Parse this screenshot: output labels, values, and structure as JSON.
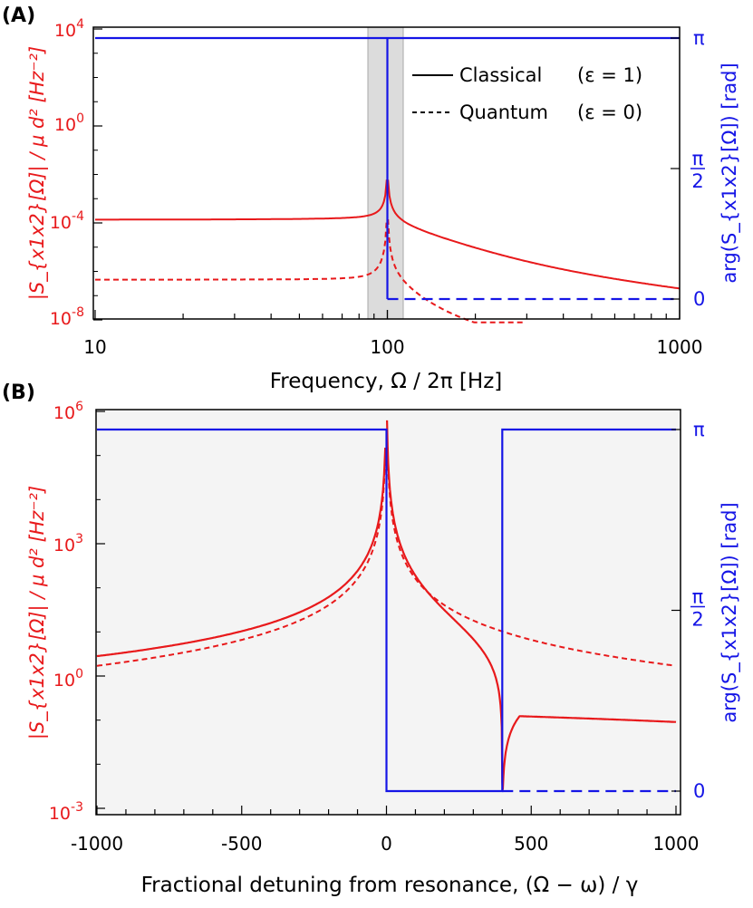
{
  "chart_data": [
    {
      "panel": "(A)",
      "type": "line",
      "xscale": "log",
      "xlim": [
        10,
        1000
      ],
      "xticks": [
        "10",
        "100",
        "1000"
      ],
      "xlabel": "Frequency, Ω / 2π  [Hz]",
      "left_axis": {
        "label": "|S_{x1x2}[Ω]| / μ d² [Hz⁻²]",
        "scale": "log",
        "ylim_exp": [
          -8,
          4
        ],
        "ticks": [
          {
            "base": "10",
            "exp": "4"
          },
          {
            "base": "10",
            "exp": "0"
          },
          {
            "base": "10",
            "exp": "-4"
          },
          {
            "base": "10",
            "exp": "-8"
          }
        ],
        "color": "#e8191b"
      },
      "right_axis": {
        "label": "arg(S_{x1x2}[Ω]) [rad]",
        "ylim": [
          -0.15,
          3.35
        ],
        "ticks": [
          "π",
          "π/2",
          "0"
        ],
        "color": "#1515e6"
      },
      "legend": [
        {
          "label": "Classical",
          "param": "(ε = 1)",
          "style": "solid"
        },
        {
          "label": "Quantum",
          "param": "(ε = 0)",
          "style": "dashed"
        }
      ],
      "highlight_band": [
        88,
        115
      ],
      "resonance": 100
    },
    {
      "panel": "(B)",
      "type": "line",
      "xlim": [
        -1050,
        1010
      ],
      "xticks": [
        "-1000",
        "-500",
        "0",
        "500",
        "1000"
      ],
      "xlabel": "Fractional detuning from resonance, (Ω − ω) / γ",
      "left_axis": {
        "label": "|S_{x1x2}[Ω]| / μ d² [Hz⁻²]",
        "scale": "log",
        "ylim_exp": [
          -3,
          6
        ],
        "ticks": [
          {
            "base": "10",
            "exp": "6"
          },
          {
            "base": "10",
            "exp": "3"
          },
          {
            "base": "10",
            "exp": "0"
          },
          {
            "base": "10",
            "exp": "-3"
          }
        ],
        "color": "#e8191b"
      },
      "right_axis": {
        "label": "arg(S_{x1x2}[Ω]) [rad]",
        "ylim": [
          -0.15,
          3.4
        ],
        "ticks": [
          "π",
          "π/2",
          "0"
        ],
        "color": "#1515e6"
      },
      "antiresonance": 400,
      "background": "#f4f4f4"
    }
  ]
}
